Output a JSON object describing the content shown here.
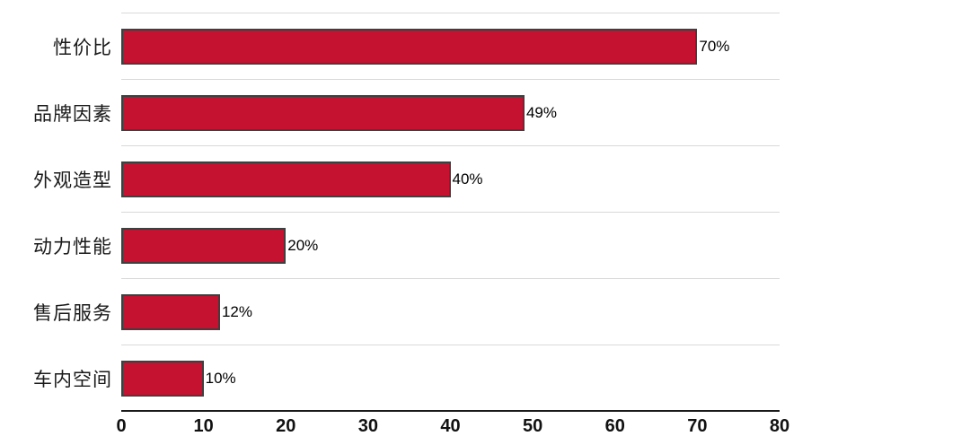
{
  "chart_data": {
    "type": "bar",
    "orientation": "horizontal",
    "title": "",
    "xlabel": "",
    "ylabel": "",
    "categories": [
      "性价比",
      "品牌因素",
      "外观造型",
      "动力性能",
      "售后服务",
      "车内空间"
    ],
    "values": [
      70,
      49,
      40,
      20,
      12,
      10
    ],
    "value_labels": [
      "70%",
      "49%",
      "40%",
      "20%",
      "12%",
      "10%"
    ],
    "x_ticks": [
      0,
      10,
      20,
      30,
      40,
      50,
      60,
      70,
      80
    ],
    "xlim": [
      0,
      80
    ],
    "grid": true,
    "legend": "none",
    "bar_color": "#c41230",
    "bar_border_color": "#3f3f3f",
    "gridline_color": "#d9d9d9",
    "axis_color": "#1a1a1a"
  }
}
